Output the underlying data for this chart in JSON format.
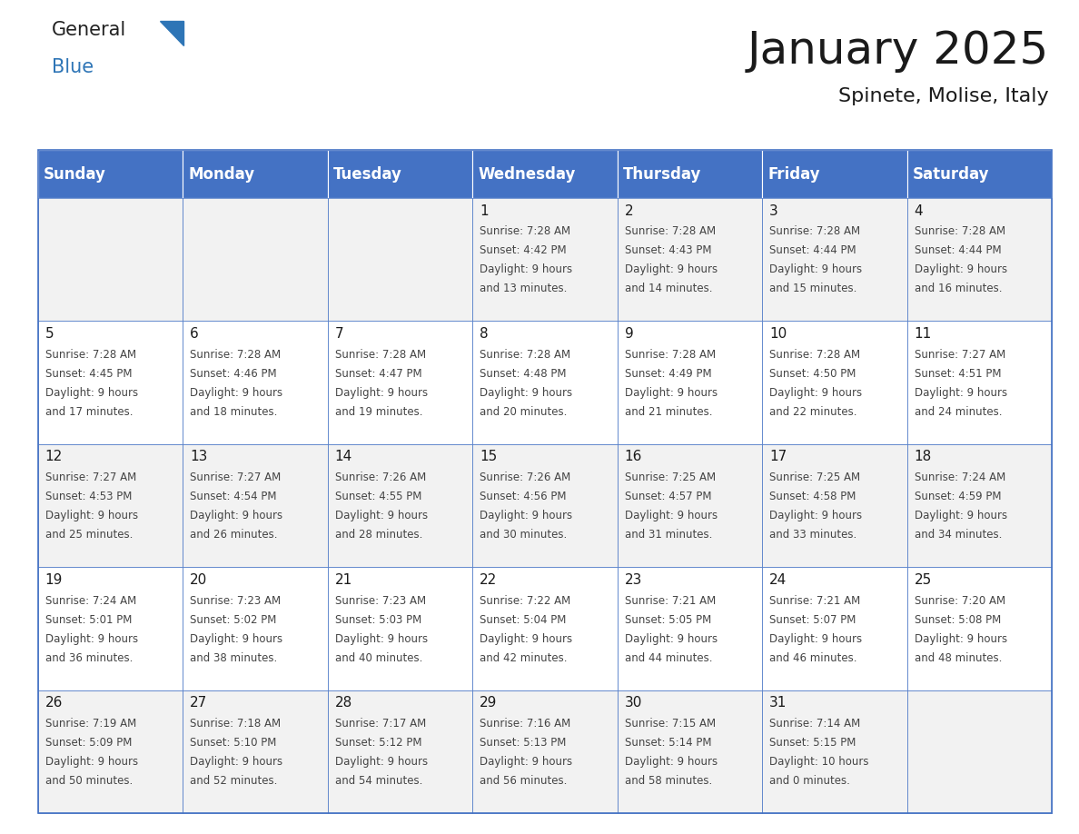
{
  "title": "January 2025",
  "subtitle": "Spinete, Molise, Italy",
  "days_of_week": [
    "Sunday",
    "Monday",
    "Tuesday",
    "Wednesday",
    "Thursday",
    "Friday",
    "Saturday"
  ],
  "header_bg": "#4472C4",
  "header_text_color": "#FFFFFF",
  "row_bg_odd": "#F2F2F2",
  "row_bg_even": "#FFFFFF",
  "cell_text_color": "#444444",
  "grid_color": "#4472C4",
  "logo_general_color": "#222222",
  "logo_blue_color": "#2E75B6",
  "title_fontsize": 36,
  "subtitle_fontsize": 16,
  "header_fontsize": 12,
  "day_num_fontsize": 11,
  "cell_fontsize": 8.5,
  "calendar": [
    [
      {
        "day": "",
        "sunrise": "",
        "sunset": "",
        "daylight": ""
      },
      {
        "day": "",
        "sunrise": "",
        "sunset": "",
        "daylight": ""
      },
      {
        "day": "",
        "sunrise": "",
        "sunset": "",
        "daylight": ""
      },
      {
        "day": "1",
        "sunrise": "7:28 AM",
        "sunset": "4:42 PM",
        "daylight": "9 hours and 13 minutes."
      },
      {
        "day": "2",
        "sunrise": "7:28 AM",
        "sunset": "4:43 PM",
        "daylight": "9 hours and 14 minutes."
      },
      {
        "day": "3",
        "sunrise": "7:28 AM",
        "sunset": "4:44 PM",
        "daylight": "9 hours and 15 minutes."
      },
      {
        "day": "4",
        "sunrise": "7:28 AM",
        "sunset": "4:44 PM",
        "daylight": "9 hours and 16 minutes."
      }
    ],
    [
      {
        "day": "5",
        "sunrise": "7:28 AM",
        "sunset": "4:45 PM",
        "daylight": "9 hours and 17 minutes."
      },
      {
        "day": "6",
        "sunrise": "7:28 AM",
        "sunset": "4:46 PM",
        "daylight": "9 hours and 18 minutes."
      },
      {
        "day": "7",
        "sunrise": "7:28 AM",
        "sunset": "4:47 PM",
        "daylight": "9 hours and 19 minutes."
      },
      {
        "day": "8",
        "sunrise": "7:28 AM",
        "sunset": "4:48 PM",
        "daylight": "9 hours and 20 minutes."
      },
      {
        "day": "9",
        "sunrise": "7:28 AM",
        "sunset": "4:49 PM",
        "daylight": "9 hours and 21 minutes."
      },
      {
        "day": "10",
        "sunrise": "7:28 AM",
        "sunset": "4:50 PM",
        "daylight": "9 hours and 22 minutes."
      },
      {
        "day": "11",
        "sunrise": "7:27 AM",
        "sunset": "4:51 PM",
        "daylight": "9 hours and 24 minutes."
      }
    ],
    [
      {
        "day": "12",
        "sunrise": "7:27 AM",
        "sunset": "4:53 PM",
        "daylight": "9 hours and 25 minutes."
      },
      {
        "day": "13",
        "sunrise": "7:27 AM",
        "sunset": "4:54 PM",
        "daylight": "9 hours and 26 minutes."
      },
      {
        "day": "14",
        "sunrise": "7:26 AM",
        "sunset": "4:55 PM",
        "daylight": "9 hours and 28 minutes."
      },
      {
        "day": "15",
        "sunrise": "7:26 AM",
        "sunset": "4:56 PM",
        "daylight": "9 hours and 30 minutes."
      },
      {
        "day": "16",
        "sunrise": "7:25 AM",
        "sunset": "4:57 PM",
        "daylight": "9 hours and 31 minutes."
      },
      {
        "day": "17",
        "sunrise": "7:25 AM",
        "sunset": "4:58 PM",
        "daylight": "9 hours and 33 minutes."
      },
      {
        "day": "18",
        "sunrise": "7:24 AM",
        "sunset": "4:59 PM",
        "daylight": "9 hours and 34 minutes."
      }
    ],
    [
      {
        "day": "19",
        "sunrise": "7:24 AM",
        "sunset": "5:01 PM",
        "daylight": "9 hours and 36 minutes."
      },
      {
        "day": "20",
        "sunrise": "7:23 AM",
        "sunset": "5:02 PM",
        "daylight": "9 hours and 38 minutes."
      },
      {
        "day": "21",
        "sunrise": "7:23 AM",
        "sunset": "5:03 PM",
        "daylight": "9 hours and 40 minutes."
      },
      {
        "day": "22",
        "sunrise": "7:22 AM",
        "sunset": "5:04 PM",
        "daylight": "9 hours and 42 minutes."
      },
      {
        "day": "23",
        "sunrise": "7:21 AM",
        "sunset": "5:05 PM",
        "daylight": "9 hours and 44 minutes."
      },
      {
        "day": "24",
        "sunrise": "7:21 AM",
        "sunset": "5:07 PM",
        "daylight": "9 hours and 46 minutes."
      },
      {
        "day": "25",
        "sunrise": "7:20 AM",
        "sunset": "5:08 PM",
        "daylight": "9 hours and 48 minutes."
      }
    ],
    [
      {
        "day": "26",
        "sunrise": "7:19 AM",
        "sunset": "5:09 PM",
        "daylight": "9 hours and 50 minutes."
      },
      {
        "day": "27",
        "sunrise": "7:18 AM",
        "sunset": "5:10 PM",
        "daylight": "9 hours and 52 minutes."
      },
      {
        "day": "28",
        "sunrise": "7:17 AM",
        "sunset": "5:12 PM",
        "daylight": "9 hours and 54 minutes."
      },
      {
        "day": "29",
        "sunrise": "7:16 AM",
        "sunset": "5:13 PM",
        "daylight": "9 hours and 56 minutes."
      },
      {
        "day": "30",
        "sunrise": "7:15 AM",
        "sunset": "5:14 PM",
        "daylight": "9 hours and 58 minutes."
      },
      {
        "day": "31",
        "sunrise": "7:14 AM",
        "sunset": "5:15 PM",
        "daylight": "10 hours and 0 minutes."
      },
      {
        "day": "",
        "sunrise": "",
        "sunset": "",
        "daylight": ""
      }
    ]
  ]
}
